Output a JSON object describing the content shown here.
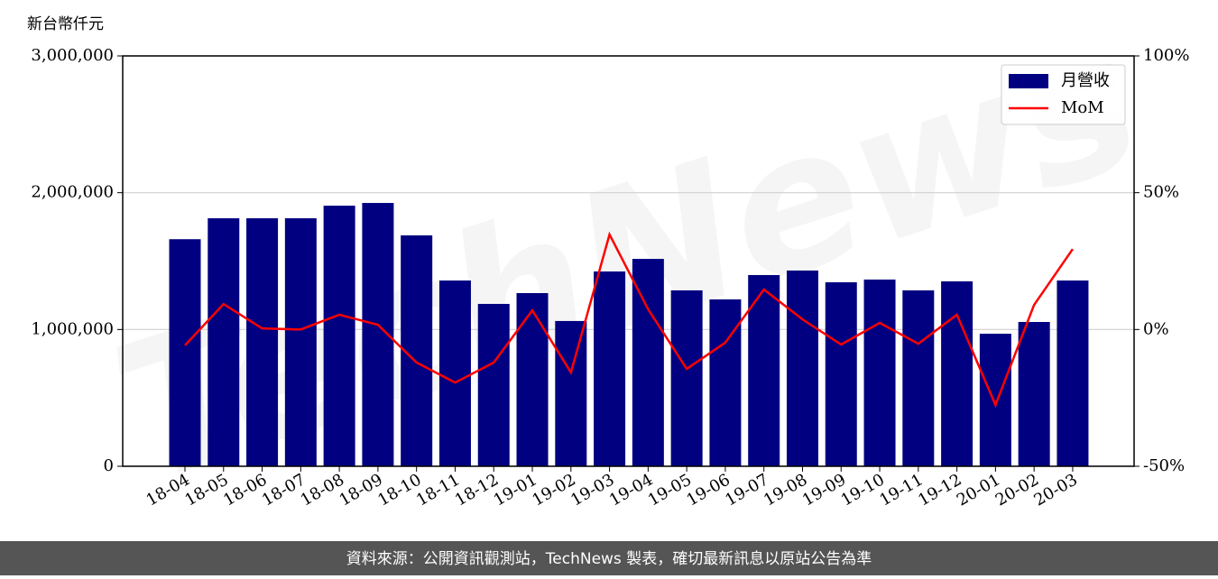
{
  "chart_data": {
    "type": "bar_line",
    "y_label": "新台幣仟元",
    "watermark": "TechNews",
    "footer": "資料來源：公開資訊觀測站，TechNews 製表，確切最新訊息以原站公告為準",
    "categories": [
      "18-04",
      "18-05",
      "18-06",
      "18-07",
      "18-08",
      "18-09",
      "18-10",
      "18-11",
      "18-12",
      "19-01",
      "19-02",
      "19-03",
      "19-04",
      "19-05",
      "19-06",
      "19-07",
      "19-08",
      "19-09",
      "19-10",
      "19-11",
      "19-12",
      "20-01",
      "20-02",
      "20-03"
    ],
    "series": [
      {
        "name": "月營收",
        "color": "#000080",
        "type": "bar",
        "values": [
          1660000,
          1813000,
          1813000,
          1813000,
          1905000,
          1925000,
          1688000,
          1358000,
          1187000,
          1266000,
          1062000,
          1424000,
          1516000,
          1286000,
          1220000,
          1398000,
          1431000,
          1345000,
          1365000,
          1286000,
          1352000,
          969000,
          1055000,
          1358000
        ]
      },
      {
        "name": "MoM",
        "color": "#ff0000",
        "type": "line",
        "axis": "y2",
        "values": [
          -5.8,
          9.3,
          0.4,
          0,
          5.4,
          1.7,
          -12.1,
          -19.4,
          -12.1,
          7.0,
          -15.7,
          34.7,
          7.4,
          -14.4,
          -4.8,
          14.6,
          3.7,
          -5.5,
          2.4,
          -5.2,
          5.4,
          -27.6,
          9.0,
          29.4
        ]
      }
    ],
    "ylim": [
      0,
      3000000
    ],
    "yticks": [
      0,
      {
        "value": 1000000,
        "label": "1,000,000"
      },
      {
        "value": 2000000,
        "label": "2,000,000"
      },
      {
        "value": 3000000,
        "label": "3,000,000"
      }
    ],
    "y2lim": [
      -50,
      100
    ],
    "y2ticks": [
      {
        "value": -50,
        "label": "-50%"
      },
      {
        "value": 0,
        "label": "0%"
      },
      {
        "value": 50,
        "label": "50%"
      },
      {
        "value": 100,
        "label": "100%"
      }
    ],
    "grid": true,
    "legend": "upper right"
  }
}
